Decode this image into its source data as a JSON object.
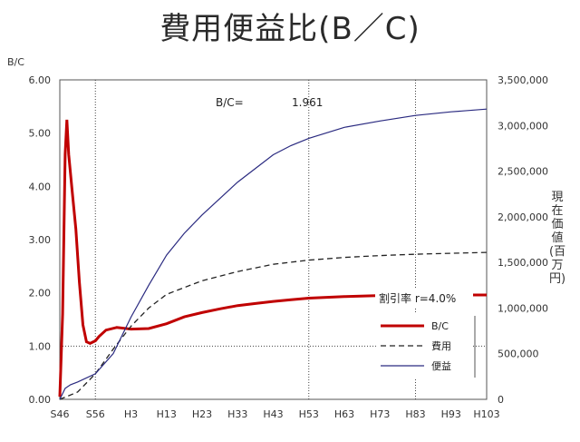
{
  "chart_data": {
    "type": "line",
    "title": "費用便益比(B／C)",
    "ylabel": "B/C",
    "y2label": "現在価値(百万円)",
    "ylim": [
      0,
      6
    ],
    "y2lim": [
      0,
      3500000
    ],
    "yticks": [
      "0.00",
      "1.00",
      "2.00",
      "3.00",
      "4.00",
      "5.00",
      "6.00"
    ],
    "y2ticks": [
      "0",
      "500,000",
      "1,000,000",
      "1,500,000",
      "2,000,000",
      "2,500,000",
      "3,000,000",
      "3,500,000"
    ],
    "categories": [
      "S46",
      "S56",
      "H3",
      "H13",
      "H23",
      "H33",
      "H43",
      "H53",
      "H63",
      "H73",
      "H83",
      "H93",
      "H103"
    ],
    "vlines": [
      "S56",
      "H53",
      "H83"
    ],
    "hline": 1.0,
    "annotation_bc_label": "B/C=",
    "annotation_bc_value": "1.961",
    "annotation_rate": "割引率 r=4.0%",
    "legend": [
      "B/C",
      "費用",
      "便益"
    ],
    "series": [
      {
        "name": "B/C",
        "axis": "left",
        "color": "#c00000",
        "points": [
          [
            0,
            0.05
          ],
          [
            0.08,
            1.6
          ],
          [
            0.15,
            4.6
          ],
          [
            0.2,
            5.25
          ],
          [
            0.25,
            4.6
          ],
          [
            0.35,
            3.9
          ],
          [
            0.45,
            3.2
          ],
          [
            0.55,
            2.2
          ],
          [
            0.65,
            1.4
          ],
          [
            0.75,
            1.08
          ],
          [
            0.85,
            1.05
          ],
          [
            1.0,
            1.1
          ],
          [
            1.1,
            1.18
          ],
          [
            1.3,
            1.3
          ],
          [
            1.6,
            1.35
          ],
          [
            2.0,
            1.32
          ],
          [
            2.5,
            1.33
          ],
          [
            3.0,
            1.42
          ],
          [
            3.5,
            1.55
          ],
          [
            4.0,
            1.63
          ],
          [
            4.5,
            1.7
          ],
          [
            5.0,
            1.76
          ],
          [
            5.5,
            1.8
          ],
          [
            6.0,
            1.84
          ],
          [
            6.5,
            1.87
          ],
          [
            7.0,
            1.9
          ],
          [
            8.0,
            1.93
          ],
          [
            9.0,
            1.95
          ],
          [
            10.0,
            1.96
          ],
          [
            11.0,
            1.96
          ],
          [
            12.0,
            1.961
          ]
        ]
      },
      {
        "name": "費用",
        "axis": "right",
        "color": "#222222",
        "points": [
          [
            0,
            0
          ],
          [
            0.5,
            80000
          ],
          [
            1.0,
            280000
          ],
          [
            1.5,
            550000
          ],
          [
            2.0,
            800000
          ],
          [
            2.5,
            1000000
          ],
          [
            3.0,
            1150000
          ],
          [
            4.0,
            1300000
          ],
          [
            5.0,
            1400000
          ],
          [
            6.0,
            1480000
          ],
          [
            7.0,
            1525000
          ],
          [
            8.0,
            1555000
          ],
          [
            9.0,
            1575000
          ],
          [
            10.0,
            1590000
          ],
          [
            11.0,
            1600000
          ],
          [
            12.0,
            1610000
          ]
        ]
      },
      {
        "name": "便益",
        "axis": "right",
        "color": "#2a2a80",
        "points": [
          [
            0,
            0
          ],
          [
            0.15,
            120000
          ],
          [
            0.3,
            160000
          ],
          [
            0.5,
            190000
          ],
          [
            1.0,
            280000
          ],
          [
            1.5,
            500000
          ],
          [
            2.0,
            900000
          ],
          [
            2.5,
            1250000
          ],
          [
            3.0,
            1580000
          ],
          [
            3.5,
            1820000
          ],
          [
            4.0,
            2020000
          ],
          [
            5.0,
            2380000
          ],
          [
            6.0,
            2680000
          ],
          [
            6.5,
            2780000
          ],
          [
            7.0,
            2860000
          ],
          [
            8.0,
            2980000
          ],
          [
            9.0,
            3050000
          ],
          [
            10.0,
            3110000
          ],
          [
            11.0,
            3150000
          ],
          [
            12.0,
            3180000
          ]
        ]
      }
    ]
  }
}
